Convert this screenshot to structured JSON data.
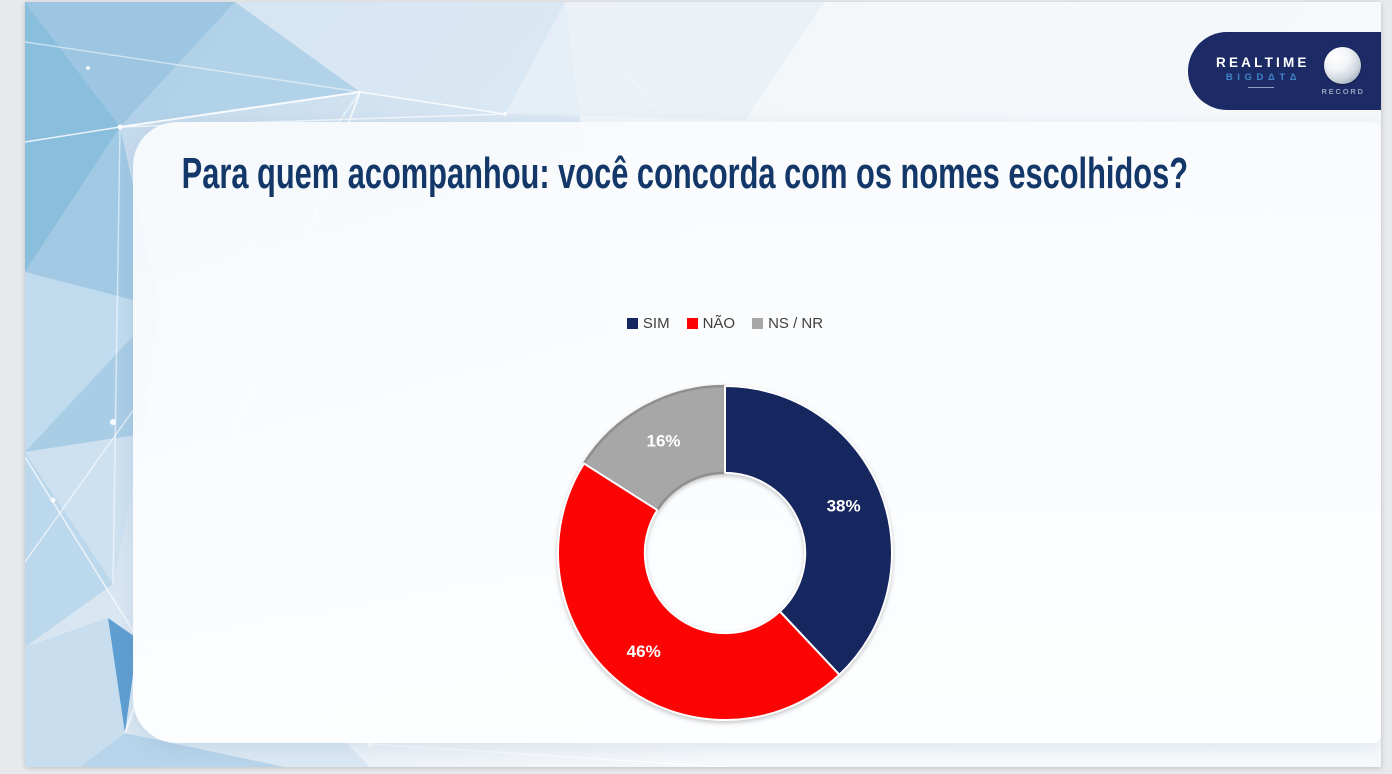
{
  "slide": {
    "question": "Para quem acompanhou: você concorda com os nomes escolhidos?"
  },
  "logo": {
    "realtime": "REALTIME",
    "bigdata": "BIGDΔTΔ",
    "record": "RECORD",
    "badge_color": "#1c2a66"
  },
  "chart_data": {
    "type": "pie",
    "subtype": "donut",
    "title": "Para quem acompanhou: você concorda com os nomes escolhidos?",
    "categories": [
      "SIM",
      "NÃO",
      "NS / NR"
    ],
    "values": [
      38,
      46,
      16
    ],
    "data_labels": [
      "38%",
      "46%",
      "16%"
    ],
    "colors": [
      "#16265e",
      "#fd0404",
      "#a7a7a7"
    ],
    "slice_strokes": [
      "#ffffff",
      "#ffffff",
      "#8f8f8f"
    ],
    "draw_order": [
      2,
      0,
      1
    ],
    "label_color": "#ffffff",
    "legend_position": "top",
    "start_angle_deg": 0,
    "direction": "clockwise",
    "inner_radius_ratio": 0.48
  }
}
